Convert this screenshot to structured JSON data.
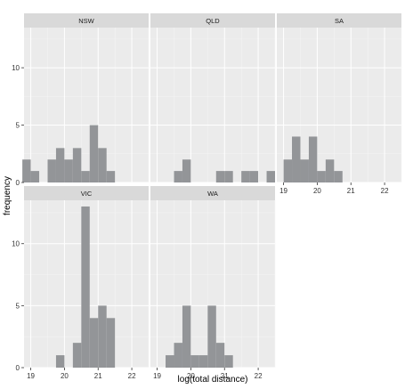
{
  "chart_data": {
    "type": "bar",
    "subtype": "histogram-facets",
    "xlabel": "log(total distance)",
    "ylabel": "frequency",
    "x_ticks": [
      19,
      20,
      21,
      22
    ],
    "y_ticks": [
      0,
      5,
      10
    ],
    "xlim": [
      18.8,
      22.5
    ],
    "ylim": [
      0,
      13.5
    ],
    "binwidth": 0.25,
    "bar_color": "#939598",
    "panel_color": "#ebebeb",
    "strip_color": "#d9d9d9",
    "facets": [
      {
        "name": "NSW",
        "bins": [
          {
            "x": 18.875,
            "count": 2
          },
          {
            "x": 19.125,
            "count": 1
          },
          {
            "x": 19.625,
            "count": 2
          },
          {
            "x": 19.875,
            "count": 3
          },
          {
            "x": 20.125,
            "count": 2
          },
          {
            "x": 20.375,
            "count": 3
          },
          {
            "x": 20.625,
            "count": 1
          },
          {
            "x": 20.875,
            "count": 5
          },
          {
            "x": 21.125,
            "count": 3
          },
          {
            "x": 21.375,
            "count": 1
          }
        ]
      },
      {
        "name": "QLD",
        "bins": [
          {
            "x": 19.625,
            "count": 1
          },
          {
            "x": 19.875,
            "count": 2
          },
          {
            "x": 20.875,
            "count": 1
          },
          {
            "x": 21.125,
            "count": 1
          },
          {
            "x": 21.625,
            "count": 1
          },
          {
            "x": 21.875,
            "count": 1
          },
          {
            "x": 22.375,
            "count": 1
          }
        ]
      },
      {
        "name": "SA",
        "bins": [
          {
            "x": 19.125,
            "count": 2
          },
          {
            "x": 19.375,
            "count": 4
          },
          {
            "x": 19.625,
            "count": 2
          },
          {
            "x": 19.875,
            "count": 4
          },
          {
            "x": 20.125,
            "count": 1
          },
          {
            "x": 20.375,
            "count": 2
          },
          {
            "x": 20.625,
            "count": 1
          }
        ]
      },
      {
        "name": "VIC",
        "bins": [
          {
            "x": 19.875,
            "count": 1
          },
          {
            "x": 20.375,
            "count": 2
          },
          {
            "x": 20.625,
            "count": 13
          },
          {
            "x": 20.875,
            "count": 4
          },
          {
            "x": 21.125,
            "count": 5
          },
          {
            "x": 21.375,
            "count": 4
          }
        ]
      },
      {
        "name": "WA",
        "bins": [
          {
            "x": 19.375,
            "count": 1
          },
          {
            "x": 19.625,
            "count": 2
          },
          {
            "x": 19.875,
            "count": 5
          },
          {
            "x": 20.125,
            "count": 1
          },
          {
            "x": 20.375,
            "count": 1
          },
          {
            "x": 20.625,
            "count": 5
          },
          {
            "x": 20.875,
            "count": 2
          },
          {
            "x": 21.125,
            "count": 1
          }
        ]
      }
    ]
  }
}
